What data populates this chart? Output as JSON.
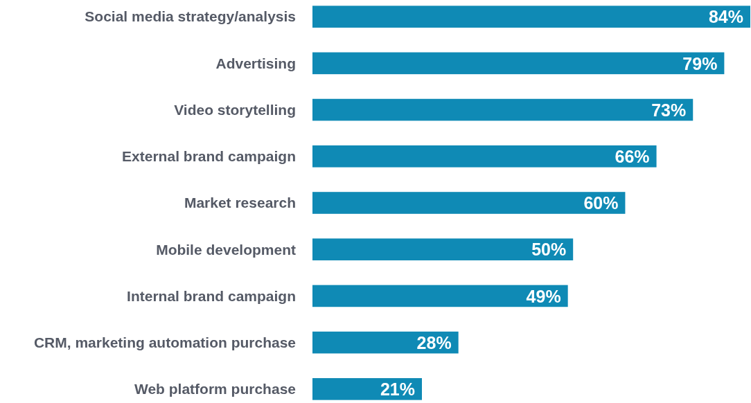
{
  "chart_data": {
    "type": "bar",
    "orientation": "horizontal",
    "categories": [
      "Social media strategy/analysis",
      "Advertising",
      "Video storytelling",
      "External brand campaign",
      "Market research",
      "Mobile development",
      "Internal brand campaign",
      "CRM, marketing automation purchase",
      "Web platform purchase"
    ],
    "values": [
      84,
      79,
      73,
      66,
      60,
      50,
      49,
      28,
      21
    ],
    "value_labels": [
      "84%",
      "79%",
      "73%",
      "66%",
      "60%",
      "50%",
      "49%",
      "28%",
      "21%"
    ],
    "color": "#0f8ab5"
  }
}
